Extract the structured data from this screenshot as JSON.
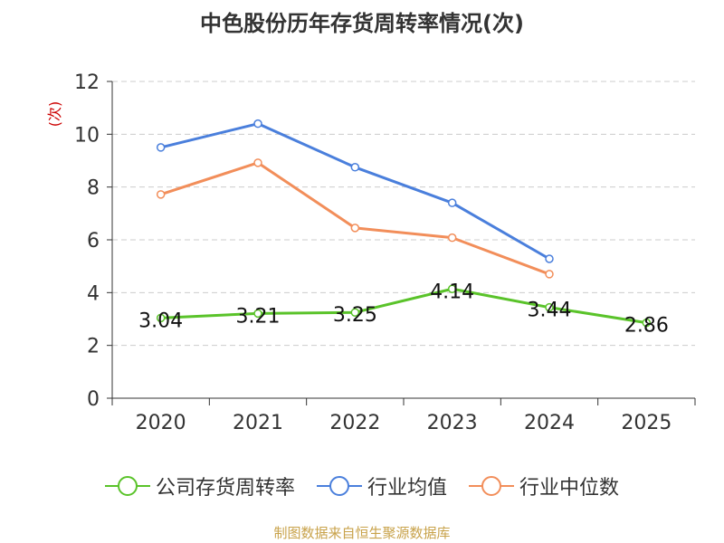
{
  "title": "中色股份历年存货周转率情况(次)",
  "source": "制图数据来自恒生聚源数据库",
  "chart_data": {
    "type": "line",
    "title": "中色股份历年存货周转率情况(次)",
    "categories": [
      "2020",
      "2021",
      "2022",
      "2023",
      "2024",
      "2025"
    ],
    "ylabel": "(次)",
    "ylim": [
      0,
      12
    ],
    "yticks": [
      0,
      2,
      4,
      6,
      8,
      10,
      12
    ],
    "grid": true,
    "legend_position": "bottom",
    "series": [
      {
        "name": "公司存货周转率",
        "color": "#5ac32a",
        "values": [
          3.04,
          3.21,
          3.25,
          4.14,
          3.44,
          2.86
        ],
        "labels": [
          "3.04",
          "3.21",
          "3.25",
          "4.14",
          "3.44",
          "2.86"
        ]
      },
      {
        "name": "行业均值",
        "color": "#4a7fdc",
        "values": [
          9.5,
          10.4,
          8.75,
          7.4,
          5.28,
          null
        ]
      },
      {
        "name": "行业中位数",
        "color": "#f28e5a",
        "values": [
          7.72,
          8.92,
          6.45,
          6.08,
          4.7,
          null
        ]
      }
    ]
  }
}
